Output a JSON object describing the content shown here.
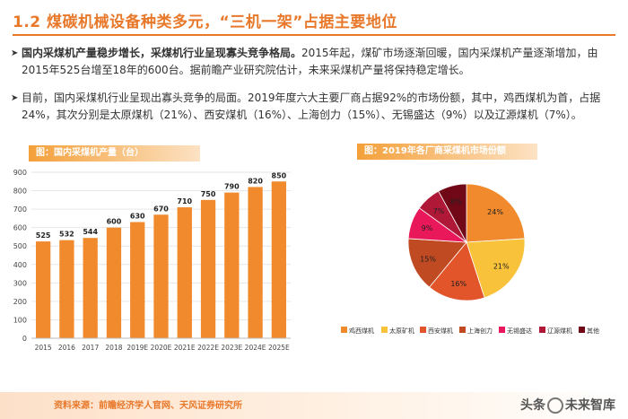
{
  "header": {
    "title": "1.2 煤碳机械设备种类多元，“三机一架”占据主要地位"
  },
  "bullets": [
    {
      "bold": "国内采煤机产量稳步增长，采煤机行业呈现寡头竞争格局。",
      "text": "2015年起，煤矿市场逐渐回暖，国内采煤机产量逐渐增加，由2015年525台增至18年的600台。据前瞻产业研究院估计，未来采煤机产量将保持稳定增长。"
    },
    {
      "text": "目前，国内采煤机行业呈现出寡头竞争的局面。2019年度六大主要厂商占据92%的市场份额，其中，鸡西煤机为首，占据24%，其次分别是太原煤机（21%）、西安煤机（16%）、上海创力（15%）、无锡盛达（9%）以及辽源煤机（7%）。"
    }
  ],
  "chart_data": [
    {
      "type": "bar",
      "title": "图：国内采煤机产量（台）",
      "categories": [
        "2015",
        "2016",
        "2017",
        "2018",
        "2019E",
        "2020E",
        "2021E",
        "2022E",
        "2023E",
        "2024E",
        "2025E"
      ],
      "values": [
        525,
        532,
        544,
        600,
        630,
        670,
        710,
        750,
        790,
        820,
        850
      ],
      "ylim": [
        0,
        900
      ],
      "yticks": [
        0,
        100,
        200,
        300,
        400,
        500,
        600,
        700,
        800,
        900
      ],
      "color": "#f08a2c"
    },
    {
      "type": "pie",
      "title": "图：2019年各厂商采煤机市场份额",
      "slices": [
        {
          "label": "鸡西煤机",
          "value": 24,
          "color": "#f08a2c"
        },
        {
          "label": "太原矿机",
          "value": 21,
          "color": "#f8c23a"
        },
        {
          "label": "西安煤机",
          "value": 16,
          "color": "#e2542a"
        },
        {
          "label": "上海创力",
          "value": 15,
          "color": "#c04a22"
        },
        {
          "label": "无锡盛达",
          "value": 9,
          "color": "#e8185a"
        },
        {
          "label": "辽源煤机",
          "value": 7,
          "color": "#b01838"
        },
        {
          "label": "其他",
          "value": 8,
          "color": "#700818"
        }
      ],
      "value_labels": [
        "24%",
        "21%",
        "16%",
        "15%",
        "9%",
        "7%",
        "8%"
      ]
    }
  ],
  "footer": {
    "source": "资料来源：前瞻经济学人官网、天风证券研究所"
  },
  "watermark": {
    "left": "头条",
    "right": "未来智库"
  }
}
